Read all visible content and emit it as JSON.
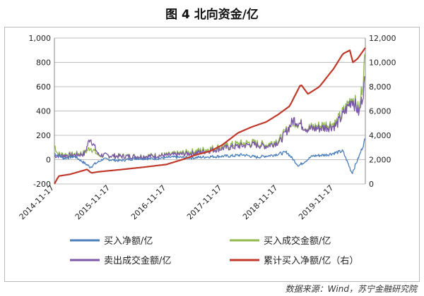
{
  "figure": {
    "title": "图 4  北向资金/亿",
    "source": "数据来源：Wind，苏宁金融研究院"
  },
  "chart_data": {
    "type": "line",
    "title": "图 4  北向资金/亿",
    "x_range": [
      "2014-11-17",
      "2020-06-10"
    ],
    "x_ticks": [
      "2014-11-17",
      "2015-11-17",
      "2016-11-17",
      "2017-11-17",
      "2018-11-17",
      "2019-11-17"
    ],
    "y_left": {
      "ylim": [
        -200,
        1000
      ],
      "ticks": [
        "-200",
        "0",
        "200",
        "400",
        "600",
        "800",
        "1,000"
      ]
    },
    "y_right": {
      "ylim": [
        0,
        12000
      ],
      "ticks": [
        "0",
        "2,000",
        "4,000",
        "6,000",
        "8,000",
        "10,000",
        "12,000"
      ]
    },
    "grid": true,
    "legend_position": "bottom",
    "series": [
      {
        "name": "买入净额/亿",
        "axis": "left",
        "color": "#4a7ebb",
        "points": [
          [
            "2014-11-17",
            50
          ],
          [
            "2015-01-15",
            12
          ],
          [
            "2015-04-01",
            25
          ],
          [
            "2015-07-08",
            -60
          ],
          [
            "2015-10-01",
            5
          ],
          [
            "2016-01-15",
            -8
          ],
          [
            "2016-05-01",
            10
          ],
          [
            "2016-09-01",
            8
          ],
          [
            "2017-01-01",
            20
          ],
          [
            "2017-05-01",
            15
          ],
          [
            "2017-09-01",
            25
          ],
          [
            "2018-01-15",
            30
          ],
          [
            "2018-04-01",
            40
          ],
          [
            "2018-07-01",
            20
          ],
          [
            "2018-10-01",
            35
          ],
          [
            "2019-01-15",
            60
          ],
          [
            "2019-04-01",
            -50
          ],
          [
            "2019-07-01",
            30
          ],
          [
            "2019-10-01",
            40
          ],
          [
            "2020-01-15",
            70
          ],
          [
            "2020-03-15",
            -110
          ],
          [
            "2020-05-01",
            30
          ],
          [
            "2020-06-10",
            170
          ]
        ],
        "noise": 22
      },
      {
        "name": "买入成交金额/亿",
        "axis": "left",
        "color": "#8fb94d",
        "points": [
          [
            "2014-11-17",
            120
          ],
          [
            "2014-12-10",
            45
          ],
          [
            "2015-03-01",
            40
          ],
          [
            "2015-06-01",
            55
          ],
          [
            "2015-07-10",
            100
          ],
          [
            "2015-09-01",
            35
          ],
          [
            "2016-01-01",
            30
          ],
          [
            "2016-06-01",
            28
          ],
          [
            "2016-12-01",
            40
          ],
          [
            "2017-06-01",
            70
          ],
          [
            "2017-12-01",
            110
          ],
          [
            "2018-03-01",
            130
          ],
          [
            "2018-06-01",
            140
          ],
          [
            "2018-09-01",
            120
          ],
          [
            "2018-12-01",
            170
          ],
          [
            "2019-03-01",
            320
          ],
          [
            "2019-06-01",
            260
          ],
          [
            "2019-09-01",
            280
          ],
          [
            "2019-12-01",
            300
          ],
          [
            "2020-02-01",
            420
          ],
          [
            "2020-03-15",
            520
          ],
          [
            "2020-05-01",
            400
          ],
          [
            "2020-06-10",
            840
          ]
        ],
        "noise": 40
      },
      {
        "name": "卖出成交金额/亿",
        "axis": "left",
        "color": "#7a56a6",
        "points": [
          [
            "2014-11-17",
            30
          ],
          [
            "2015-03-01",
            35
          ],
          [
            "2015-06-01",
            45
          ],
          [
            "2015-07-08",
            180
          ],
          [
            "2015-09-01",
            40
          ],
          [
            "2016-01-01",
            28
          ],
          [
            "2016-06-01",
            25
          ],
          [
            "2016-12-01",
            35
          ],
          [
            "2017-06-01",
            55
          ],
          [
            "2017-12-01",
            95
          ],
          [
            "2018-03-01",
            110
          ],
          [
            "2018-06-01",
            125
          ],
          [
            "2018-09-01",
            110
          ],
          [
            "2018-12-01",
            150
          ],
          [
            "2019-03-01",
            330
          ],
          [
            "2019-06-01",
            250
          ],
          [
            "2019-09-01",
            260
          ],
          [
            "2019-12-01",
            280
          ],
          [
            "2020-02-01",
            400
          ],
          [
            "2020-03-15",
            500
          ],
          [
            "2020-05-01",
            380
          ],
          [
            "2020-06-10",
            660
          ]
        ],
        "noise": 35
      },
      {
        "name": "累计买入净额/亿（右）",
        "axis": "right",
        "color": "#c0392b",
        "points": [
          [
            "2014-11-17",
            0
          ],
          [
            "2014-12-15",
            650
          ],
          [
            "2015-03-01",
            800
          ],
          [
            "2015-06-20",
            1200
          ],
          [
            "2015-07-15",
            900
          ],
          [
            "2015-09-01",
            1000
          ],
          [
            "2016-01-01",
            1150
          ],
          [
            "2016-06-01",
            1350
          ],
          [
            "2016-11-17",
            1600
          ],
          [
            "2017-03-01",
            2000
          ],
          [
            "2017-06-01",
            2400
          ],
          [
            "2017-09-01",
            2700
          ],
          [
            "2017-11-17",
            3200
          ],
          [
            "2018-03-01",
            4200
          ],
          [
            "2018-06-01",
            4700
          ],
          [
            "2018-09-01",
            5100
          ],
          [
            "2018-11-17",
            5700
          ],
          [
            "2019-02-01",
            6400
          ],
          [
            "2019-04-15",
            8200
          ],
          [
            "2019-06-01",
            7400
          ],
          [
            "2019-08-15",
            8000
          ],
          [
            "2019-11-17",
            9500
          ],
          [
            "2020-01-15",
            10700
          ],
          [
            "2020-03-01",
            11000
          ],
          [
            "2020-03-20",
            10000
          ],
          [
            "2020-04-20",
            10300
          ],
          [
            "2020-06-10",
            11200
          ]
        ],
        "noise": 0
      }
    ]
  }
}
